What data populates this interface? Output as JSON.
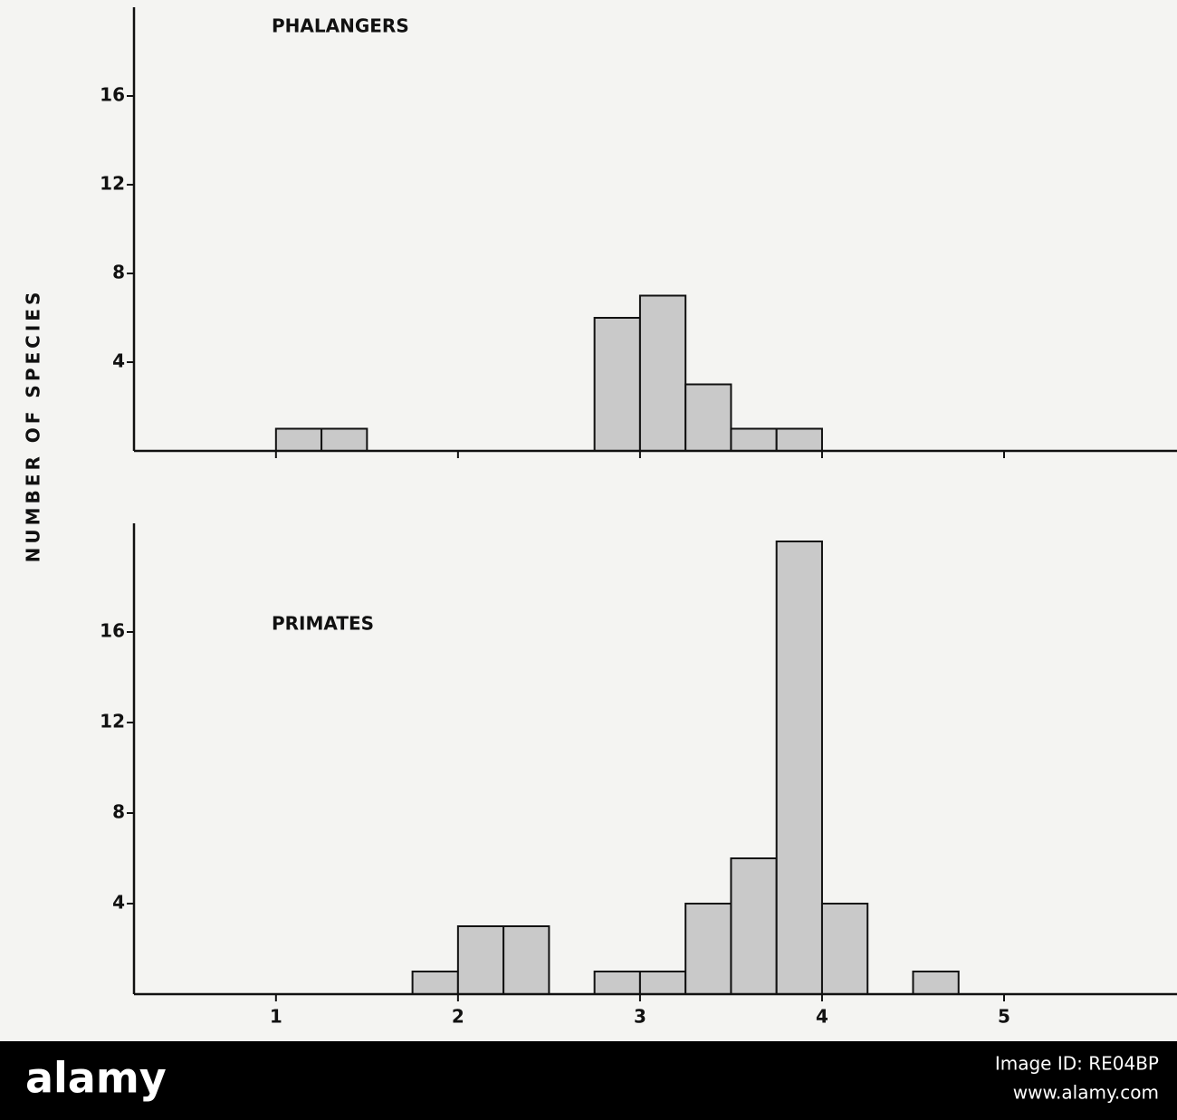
{
  "ylabel": "NUMBER OF SPECIES",
  "chart_data": [
    {
      "type": "histogram",
      "title": "PHALANGERS",
      "bins": [
        1,
        1.25,
        1.5,
        1.75,
        2,
        2.25,
        2.5,
        2.75,
        3,
        3.25,
        3.5,
        3.75,
        4
      ],
      "values": [
        1,
        1,
        0,
        0,
        0,
        0,
        0,
        6,
        7,
        3,
        1,
        1
      ],
      "color": "#c9c9c9",
      "xlim": [
        0.22,
        5.95
      ],
      "xticks": [
        1,
        2,
        3,
        4,
        5
      ],
      "xtick_labels": false,
      "ylim": [
        0,
        20
      ],
      "yticks": [
        4,
        8,
        12,
        16
      ]
    },
    {
      "type": "histogram",
      "title": "PRIMATES",
      "bins": [
        1.75,
        2,
        2.25,
        2.5,
        2.75,
        3,
        3.25,
        3.5,
        3.75,
        4,
        4.25,
        4.5,
        4.75
      ],
      "values": [
        1,
        3,
        3,
        0,
        1,
        1,
        4,
        6,
        20,
        4,
        0,
        1
      ],
      "color": "#c9c9c9",
      "xlim": [
        0.22,
        5.95
      ],
      "xticks": [
        1,
        2,
        3,
        4,
        5
      ],
      "xtick_labels": true,
      "ylim": [
        0,
        20.8
      ],
      "yticks": [
        4,
        8,
        12,
        16
      ]
    }
  ],
  "footer": {
    "brand": "alamy",
    "image_id": "Image ID: RE04BP",
    "url": "www.alamy.com"
  }
}
